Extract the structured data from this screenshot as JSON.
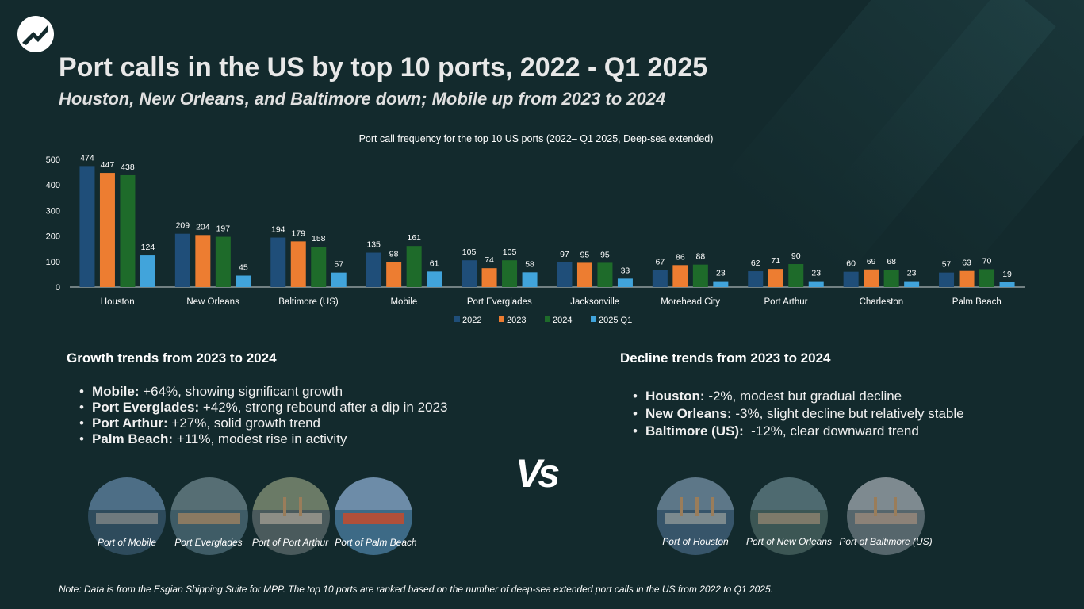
{
  "header": {
    "title": "Port calls in the US by top 10 ports, 2022 - Q1 2025",
    "subtitle": "Houston, New Orleans, and Baltimore down; Mobile up from 2023 to 2024"
  },
  "chart_data": {
    "type": "bar",
    "title": "Port call frequency for the top 10 US ports (2022– Q1 2025, Deep-sea extended)",
    "xlabel": "",
    "ylabel": "",
    "ylim": [
      0,
      500
    ],
    "yticks": [
      0,
      100,
      200,
      300,
      400,
      500
    ],
    "grid": false,
    "legend_position": "bottom",
    "categories": [
      "Houston",
      "New Orleans",
      "Baltimore (US)",
      "Mobile",
      "Port Everglades",
      "Jacksonville",
      "Morehead City",
      "Port Arthur",
      "Charleston",
      "Palm Beach"
    ],
    "series": [
      {
        "name": "2022",
        "color": "#1f4e79",
        "values": [
          474,
          209,
          194,
          135,
          105,
          97,
          67,
          62,
          60,
          57
        ]
      },
      {
        "name": "2023",
        "color": "#ed7d31",
        "values": [
          447,
          204,
          179,
          98,
          74,
          95,
          86,
          71,
          69,
          63
        ]
      },
      {
        "name": "2024",
        "color": "#1e6b2a",
        "values": [
          438,
          197,
          158,
          161,
          105,
          95,
          88,
          90,
          68,
          70
        ]
      },
      {
        "name": "2025 Q1",
        "color": "#41a4db",
        "values": [
          124,
          45,
          57,
          61,
          58,
          33,
          23,
          23,
          23,
          19
        ]
      }
    ]
  },
  "growth": {
    "heading": "Growth trends from 2023 to 2024",
    "items": [
      {
        "port": "Mobile:",
        "text": " +64%, showing significant growth"
      },
      {
        "port": "Port Everglades:",
        "text": " +42%, strong rebound after a dip in 2023"
      },
      {
        "port": "Port Arthur:",
        "text": " +27%, solid growth trend"
      },
      {
        "port": "Palm Beach:",
        "text": " +11%, modest rise in activity"
      }
    ]
  },
  "decline": {
    "heading": "Decline trends from 2023 to 2024",
    "items": [
      {
        "port": "Houston:",
        "text": " -2%, modest but gradual decline"
      },
      {
        "port": "New Orleans:",
        "text": " -3%, slight decline but relatively stable"
      },
      {
        "port": "Baltimore (US):",
        "text": "  -12%, clear downward trend"
      }
    ]
  },
  "vs_label": "Vs",
  "photos_growth": [
    {
      "caption": "Port of Mobile"
    },
    {
      "caption": "Port Everglades"
    },
    {
      "caption": "Port of Port Arthur"
    },
    {
      "caption": "Port of Palm Beach"
    }
  ],
  "photos_decline": [
    {
      "caption": "Port of Houston"
    },
    {
      "caption": "Port of New Orleans"
    },
    {
      "caption": "Port of Baltimore (US)"
    }
  ],
  "note": "Note: Data is from the Esgian Shipping Suite for MPP. The top 10 ports are ranked based on the number of deep-sea extended port calls in the US from 2022 to Q1 2025.",
  "colors": {
    "background": "#132a2d",
    "text": "#ffffff"
  }
}
